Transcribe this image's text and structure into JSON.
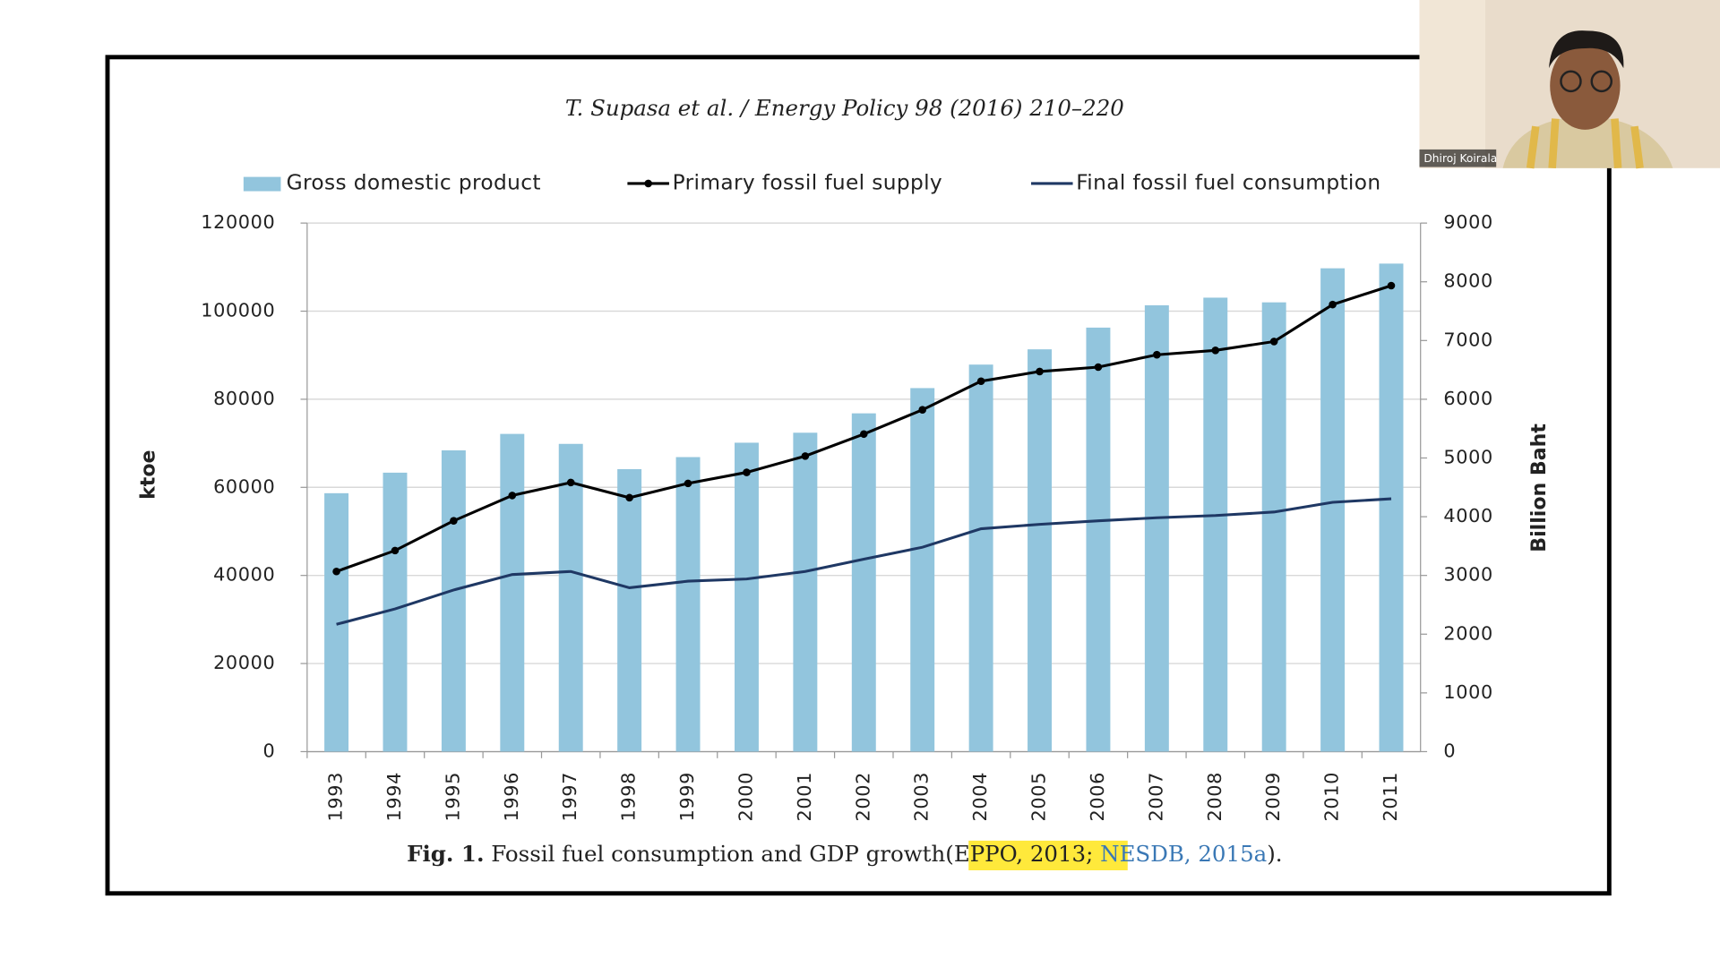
{
  "paper_header": "T. Supasa et al. / Energy Policy 98 (2016) 210–220",
  "chart_data": {
    "type": "combo",
    "categories": [
      "1993",
      "1994",
      "1995",
      "1996",
      "1997",
      "1998",
      "1999",
      "2000",
      "2001",
      "2002",
      "2003",
      "2004",
      "2005",
      "2006",
      "2007",
      "2008",
      "2009",
      "2010",
      "2011"
    ],
    "series": [
      {
        "name": "Gross domestic product",
        "type": "bar",
        "axis": "y2",
        "color": "#92c5dd",
        "values": [
          4400,
          4750,
          5130,
          5410,
          5240,
          4810,
          5015,
          5260,
          5430,
          5760,
          6190,
          6590,
          6850,
          7220,
          7600,
          7730,
          7650,
          8230,
          8310
        ]
      },
      {
        "name": "Primary fossil fuel supply",
        "type": "line",
        "markers": true,
        "color": "#000000",
        "values": [
          40900,
          45650,
          52400,
          58150,
          61100,
          57650,
          60900,
          63400,
          67100,
          72100,
          77600,
          84100,
          86300,
          87300,
          90100,
          91100,
          93100,
          101500,
          105800
        ]
      },
      {
        "name": "Final fossil fuel consumption",
        "type": "line",
        "markers": false,
        "color": "#1f3864",
        "values": [
          28900,
          32400,
          36700,
          40200,
          40900,
          37200,
          38700,
          39200,
          40900,
          43700,
          46400,
          50600,
          51600,
          52400,
          53100,
          53600,
          54400,
          56600,
          57400
        ]
      }
    ],
    "ylabel": "ktoe",
    "y2label": "Billion Baht",
    "ylim": [
      0,
      120000
    ],
    "yticks": [
      0,
      20000,
      40000,
      60000,
      80000,
      100000,
      120000
    ],
    "y2lim": [
      0,
      9000
    ],
    "y2ticks": [
      0,
      1000,
      2000,
      3000,
      4000,
      5000,
      6000,
      7000,
      8000,
      9000
    ],
    "grid": true,
    "legend": "top"
  },
  "caption": {
    "label": "Fig. 1.",
    "text": "Fossil fuel consumption and GDP growth",
    "open": "(EPPO, 2013",
    "separator": ";",
    "reference": "NESDB, 2015a",
    "close": ")."
  },
  "participant": {
    "name": "Dhiroj Koirala"
  }
}
